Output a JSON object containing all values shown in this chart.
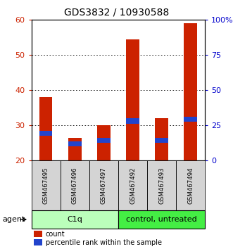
{
  "title": "GDS3832 / 10930588",
  "samples": [
    "GSM467495",
    "GSM467496",
    "GSM467497",
    "GSM467492",
    "GSM467493",
    "GSM467494"
  ],
  "count_values": [
    38,
    26.5,
    30,
    54.5,
    32,
    59
  ],
  "percentile_values": [
    27,
    24,
    25,
    30.5,
    25,
    31
  ],
  "percentile_heights": [
    1.5,
    1.5,
    1.5,
    1.5,
    1.5,
    1.5
  ],
  "bar_bottom": 20,
  "ylim": [
    20,
    60
  ],
  "yticks_left": [
    20,
    30,
    40,
    50,
    60
  ],
  "yticks_right": [
    0,
    25,
    50,
    75,
    100
  ],
  "bar_color": "#cc2200",
  "percentile_color": "#2244cc",
  "groups": [
    {
      "label": "C1q",
      "indices": [
        0,
        1,
        2
      ],
      "color": "#bbffbb"
    },
    {
      "label": "control, untreated",
      "indices": [
        3,
        4,
        5
      ],
      "color": "#44ee44"
    }
  ],
  "agent_label": "agent",
  "legend_items": [
    {
      "label": "count",
      "color": "#cc2200"
    },
    {
      "label": "percentile rank within the sample",
      "color": "#2244cc"
    }
  ],
  "left_axis_color": "#cc2200",
  "right_axis_color": "#0000cc",
  "plot_bg": "#ffffff",
  "fig_bg": "#ffffff"
}
